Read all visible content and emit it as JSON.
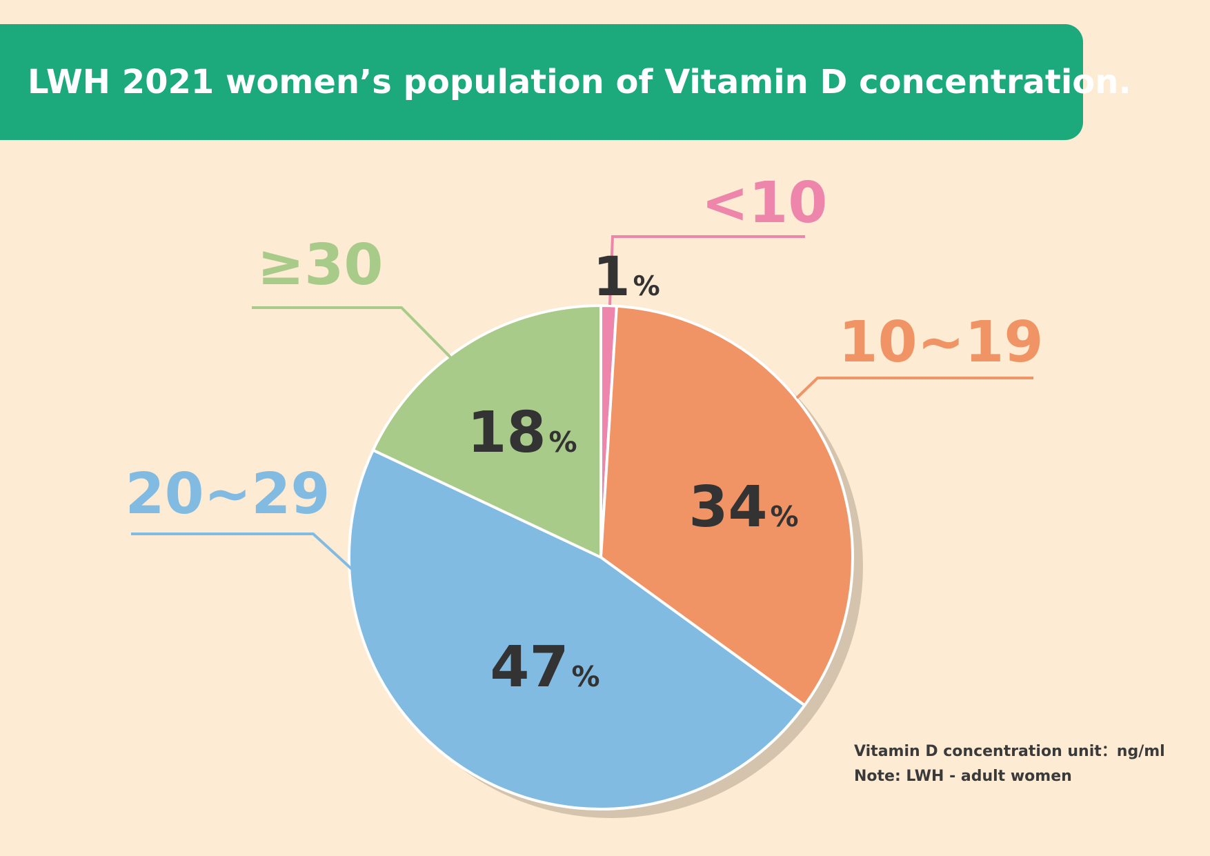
{
  "title": "LWH 2021 women’s population of Vitamin D concentration.",
  "colors": {
    "header": "#1ca97b",
    "background": "#fdebd3",
    "shadow": "#d5c4ad"
  },
  "chart_data": {
    "type": "pie",
    "title": "LWH 2021 women’s population of Vitamin D concentration.",
    "slices": [
      {
        "label": "<10",
        "value": 1,
        "value_label": "1",
        "unit": "%",
        "color": "#ee86ab"
      },
      {
        "label": "10~19",
        "value": 34,
        "value_label": "34",
        "unit": "%",
        "color": "#f09465"
      },
      {
        "label": "20~29",
        "value": 47,
        "value_label": "47",
        "unit": "%",
        "color": "#82bbe2"
      },
      {
        "label": "≥30",
        "value": 18,
        "value_label": "18",
        "unit": "%",
        "color": "#a8cb8a"
      }
    ],
    "start": "12 o'clock",
    "direction": "clockwise"
  },
  "notes": {
    "unit": "Vitamin D concentration unit：ng/ml",
    "note": "Note: LWH - adult women"
  }
}
